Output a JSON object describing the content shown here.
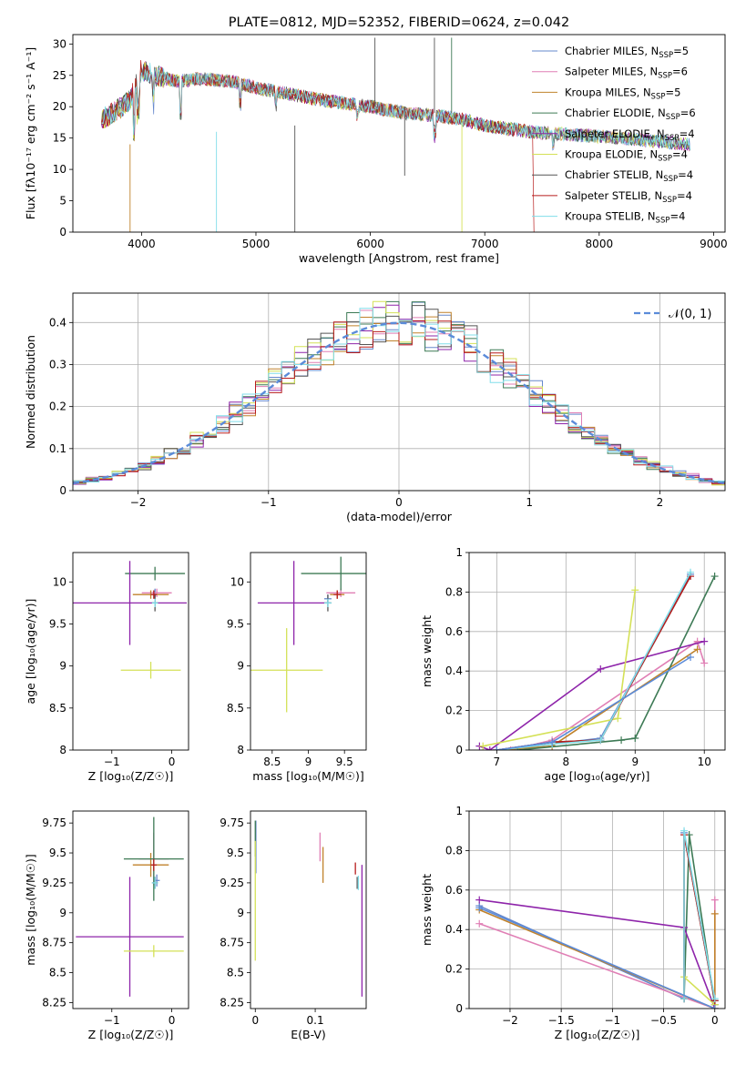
{
  "chart_data": [
    {
      "id": "spectrum",
      "type": "line",
      "title": "PLATE=0812, MJD=52352, FIBERID=0624, z=0.042",
      "xlabel": "wavelength [Angstrom, rest frame]",
      "ylabel": "Flux [fλ10⁻¹⁷ erg cm⁻² s⁻¹ A⁻¹]",
      "xlim": [
        3400,
        9100
      ],
      "ylim": [
        0,
        31.5
      ],
      "xticks": [
        4000,
        5000,
        6000,
        7000,
        8000,
        9000
      ],
      "yticks": [
        0,
        5,
        10,
        15,
        20,
        25,
        30
      ],
      "legend_position": "top-right",
      "approx_continuum": {
        "x": [
          3650,
          3750,
          3900,
          4000,
          4100,
          4300,
          4500,
          4800,
          5000,
          5300,
          5600,
          6000,
          6300,
          6600,
          6800,
          7000,
          7400,
          7800,
          8200,
          8500,
          8800
        ],
        "y": [
          18,
          19,
          21,
          26,
          25,
          24,
          24.5,
          24,
          23,
          22,
          21,
          20,
          19,
          18.5,
          18,
          17,
          16,
          15.5,
          15,
          14.5,
          14
        ]
      },
      "series": [
        {
          "name": "Chabrier MILES, N",
          "sub": "SSP",
          "suffix": "=5",
          "color": "#6688cc"
        },
        {
          "name": "Salpeter MILES, N",
          "sub": "SSP",
          "suffix": "=6",
          "color": "#e07fb5"
        },
        {
          "name": "Kroupa MILES, N",
          "sub": "SSP",
          "suffix": "=5",
          "color": "#c0822b"
        },
        {
          "name": "Chabrier ELODIE, N",
          "sub": "SSP",
          "suffix": "=6",
          "color": "#3d7a55"
        },
        {
          "name": "Salpeter ELODIE, N",
          "sub": "SSP",
          "suffix": "=4",
          "color": "#8e24aa"
        },
        {
          "name": "Kroupa ELODIE, N",
          "sub": "SSP",
          "suffix": "=4",
          "color": "#d4e157"
        },
        {
          "name": "Chabrier STELIB, N",
          "sub": "SSP",
          "suffix": "=4",
          "color": "#555555"
        },
        {
          "name": "Salpeter STELIB, N",
          "sub": "SSP",
          "suffix": "=4",
          "color": "#b71c1c"
        },
        {
          "name": "Kroupa STELIB, N",
          "sub": "SSP",
          "suffix": "=4",
          "color": "#80deea"
        }
      ]
    },
    {
      "id": "residuals",
      "type": "line",
      "xlabel": "(data-model)/error",
      "ylabel": "Normed distribution",
      "xlim": [
        -2.5,
        2.5
      ],
      "ylim": [
        0,
        0.47
      ],
      "xticks": [
        -2,
        -1,
        0,
        1,
        2
      ],
      "yticks": [
        0.0,
        0.1,
        0.2,
        0.3,
        0.4
      ],
      "grid": true,
      "legend_position": "top-right",
      "legend_label": "𝒩(0, 1)",
      "gaussian": {
        "mean": 0,
        "sigma": 1,
        "color": "#5b8bd9"
      },
      "bin_width": 0.1
    },
    {
      "id": "age_vs_Z",
      "type": "scatter",
      "xlabel": "Z [log₁₀(Z/Z☉)]",
      "ylabel": "age  [log₁₀(age/yr)]",
      "xlim": [
        -1.65,
        0.28
      ],
      "ylim": [
        8.0,
        10.35
      ],
      "xticks": [
        -1,
        0
      ],
      "yticks": [
        8.0,
        8.5,
        9.0,
        9.5,
        10.0
      ],
      "points": [
        {
          "x": -0.28,
          "xerr": 0.05,
          "y": 9.87,
          "yerr": 0.05,
          "color": "#6688cc"
        },
        {
          "x": -0.25,
          "xerr": 0.25,
          "y": 9.87,
          "yerr": 0.05,
          "color": "#e07fb5"
        },
        {
          "x": -0.35,
          "xerr": 0.3,
          "y": 9.85,
          "yerr": 0.05,
          "color": "#c0822b"
        },
        {
          "x": -0.28,
          "xerr": 0.5,
          "y": 10.1,
          "yerr": 0.08,
          "color": "#3d7a55"
        },
        {
          "x": -0.7,
          "xerr": 0.95,
          "y": 9.75,
          "yerr": 0.5,
          "color": "#8e24aa"
        },
        {
          "x": -0.35,
          "xerr": 0.5,
          "y": 8.95,
          "yerr": 0.1,
          "color": "#d4e157"
        },
        {
          "x": -0.28,
          "xerr": 0.05,
          "y": 9.75,
          "yerr": 0.1,
          "color": "#555555"
        },
        {
          "x": -0.3,
          "xerr": 0.05,
          "y": 9.85,
          "yerr": 0.05,
          "color": "#b71c1c"
        },
        {
          "x": -0.28,
          "xerr": 0.05,
          "y": 9.75,
          "yerr": 0.05,
          "color": "#80deea"
        }
      ]
    },
    {
      "id": "age_vs_mass",
      "type": "scatter",
      "xlabel": "mass [log₁₀(M/M☉)]",
      "ylabel": "",
      "xlim": [
        8.2,
        9.8
      ],
      "ylim": [
        8.0,
        10.35
      ],
      "xticks": [
        8.5,
        9.0,
        9.5
      ],
      "yticks": [
        8.0,
        8.5,
        9.0,
        9.5,
        10.0
      ],
      "points": [
        {
          "x": 9.27,
          "xerr": 0.05,
          "y": 9.8,
          "yerr": 0.05,
          "color": "#6688cc"
        },
        {
          "x": 9.45,
          "xerr": 0.2,
          "y": 9.87,
          "yerr": 0.05,
          "color": "#e07fb5"
        },
        {
          "x": 9.4,
          "xerr": 0.1,
          "y": 9.85,
          "yerr": 0.05,
          "color": "#c0822b"
        },
        {
          "x": 9.45,
          "xerr": 0.55,
          "y": 10.1,
          "yerr": 0.2,
          "color": "#3d7a55"
        },
        {
          "x": 8.8,
          "xerr": 0.5,
          "y": 9.75,
          "yerr": 0.5,
          "color": "#8e24aa"
        },
        {
          "x": 8.7,
          "xerr": 0.5,
          "y": 8.95,
          "yerr": 0.5,
          "color": "#d4e157"
        },
        {
          "x": 9.27,
          "xerr": 0.05,
          "y": 9.75,
          "yerr": 0.1,
          "color": "#555555"
        },
        {
          "x": 9.4,
          "xerr": 0.05,
          "y": 9.85,
          "yerr": 0.05,
          "color": "#b71c1c"
        },
        {
          "x": 9.27,
          "xerr": 0.05,
          "y": 9.75,
          "yerr": 0.05,
          "color": "#80deea"
        }
      ]
    },
    {
      "id": "mass_weight_vs_age",
      "type": "line",
      "xlabel": "age  [log₁₀(age/yr)]",
      "ylabel": "mass weight",
      "xlim": [
        6.6,
        10.3
      ],
      "ylim": [
        0,
        1.0
      ],
      "xticks": [
        7,
        8,
        9,
        10
      ],
      "yticks": [
        0.0,
        0.2,
        0.4,
        0.6,
        0.8,
        1.0
      ],
      "grid": true,
      "series": [
        {
          "color": "#6688cc",
          "x": [
            7.0,
            7.8,
            8.5,
            9.8
          ],
          "y": [
            0.0,
            0.03,
            0.06,
            0.89
          ]
        },
        {
          "color": "#e07fb5",
          "x": [
            7.2,
            7.8,
            9.9,
            10.0
          ],
          "y": [
            0.0,
            0.05,
            0.55,
            0.44
          ]
        },
        {
          "color": "#c0822b",
          "x": [
            7.0,
            7.8,
            9.9
          ],
          "y": [
            0.0,
            0.02,
            0.51
          ]
        },
        {
          "color": "#3d7a55",
          "x": [
            7.3,
            8.8,
            9.0,
            10.15
          ],
          "y": [
            0.0,
            0.05,
            0.06,
            0.88
          ]
        },
        {
          "color": "#8e24aa",
          "x": [
            6.75,
            6.9,
            8.5,
            10.0
          ],
          "y": [
            0.02,
            0.0,
            0.41,
            0.55
          ]
        },
        {
          "color": "#d4e157",
          "x": [
            6.8,
            8.75,
            9.0
          ],
          "y": [
            0.02,
            0.16,
            0.81
          ]
        },
        {
          "color": "#555555",
          "x": [
            7.0,
            7.8,
            8.5,
            9.8
          ],
          "y": [
            0.0,
            0.04,
            0.05,
            0.88
          ]
        },
        {
          "color": "#b71c1c",
          "x": [
            7.0,
            7.8,
            8.5,
            9.8
          ],
          "y": [
            0.0,
            0.04,
            0.05,
            0.88
          ]
        },
        {
          "color": "#80deea",
          "x": [
            7.0,
            7.8,
            8.5,
            9.8
          ],
          "y": [
            0.0,
            0.03,
            0.05,
            0.9
          ]
        },
        {
          "color": "#5b8bd9",
          "x": [
            7.0,
            7.8,
            9.8
          ],
          "y": [
            0.0,
            0.04,
            0.47
          ]
        }
      ]
    },
    {
      "id": "mass_vs_Z",
      "type": "scatter",
      "xlabel": "Z [log₁₀(Z/Z☉)]",
      "ylabel": "mass [log₁₀(M/M☉)]",
      "xlim": [
        -1.65,
        0.28
      ],
      "ylim": [
        8.2,
        9.85
      ],
      "xticks": [
        -1,
        0
      ],
      "yticks": [
        8.25,
        8.5,
        8.75,
        9.0,
        9.25,
        9.5,
        9.75
      ],
      "points": [
        {
          "x": -0.25,
          "xerr": 0.05,
          "y": 9.27,
          "yerr": 0.05,
          "color": "#6688cc"
        },
        {
          "x": -0.3,
          "xerr": 0.25,
          "y": 9.45,
          "yerr": 0.22,
          "color": "#e07fb5"
        },
        {
          "x": -0.35,
          "xerr": 0.3,
          "y": 9.4,
          "yerr": 0.1,
          "color": "#c0822b"
        },
        {
          "x": -0.3,
          "xerr": 0.5,
          "y": 9.45,
          "yerr": 0.35,
          "color": "#3d7a55"
        },
        {
          "x": -0.7,
          "xerr": 0.9,
          "y": 8.8,
          "yerr": 0.5,
          "color": "#8e24aa"
        },
        {
          "x": -0.3,
          "xerr": 0.5,
          "y": 8.68,
          "yerr": 0.05,
          "color": "#d4e157"
        },
        {
          "x": -0.28,
          "xerr": 0.05,
          "y": 9.25,
          "yerr": 0.05,
          "color": "#555555"
        },
        {
          "x": -0.3,
          "xerr": 0.05,
          "y": 9.4,
          "yerr": 0.05,
          "color": "#b71c1c"
        },
        {
          "x": -0.28,
          "xerr": 0.05,
          "y": 9.25,
          "yerr": 0.05,
          "color": "#80deea"
        }
      ]
    },
    {
      "id": "mass_vs_ebv",
      "type": "scatter",
      "xlabel": "E(B-V)",
      "ylabel": "",
      "xlim": [
        -0.008,
        0.185
      ],
      "ylim": [
        8.2,
        9.85
      ],
      "xticks": [
        0.0,
        0.1
      ],
      "yticks": [
        8.25,
        8.5,
        8.75,
        9.0,
        9.25,
        9.5,
        9.75
      ],
      "points": [
        {
          "x": 0.001,
          "xerr": 0,
          "y": 9.55,
          "yerr": 0.22,
          "color": "#6688cc"
        },
        {
          "x": 0.108,
          "xerr": 0,
          "y": 9.55,
          "yerr": 0.12,
          "color": "#e07fb5"
        },
        {
          "x": 0.113,
          "xerr": 0,
          "y": 9.4,
          "yerr": 0.15,
          "color": "#c0822b"
        },
        {
          "x": 0.0,
          "xerr": 0,
          "y": 9.62,
          "yerr": 0.15,
          "color": "#3d7a55"
        },
        {
          "x": 0.178,
          "xerr": 0,
          "y": 8.85,
          "yerr": 0.55,
          "color": "#8e24aa"
        },
        {
          "x": 0.0,
          "xerr": 0,
          "y": 9.1,
          "yerr": 0.5,
          "color": "#d4e157"
        },
        {
          "x": 0.17,
          "xerr": 0,
          "y": 9.25,
          "yerr": 0.05,
          "color": "#555555"
        },
        {
          "x": 0.167,
          "xerr": 0,
          "y": 9.37,
          "yerr": 0.05,
          "color": "#b71c1c"
        },
        {
          "x": 0.172,
          "xerr": 0,
          "y": 9.25,
          "yerr": 0.06,
          "color": "#80deea"
        }
      ]
    },
    {
      "id": "mass_weight_vs_Z",
      "type": "line",
      "xlabel": "Z [log₁₀(Z/Z☉)]",
      "ylabel": "mass weight",
      "xlim": [
        -2.4,
        0.1
      ],
      "ylim": [
        0,
        1.0
      ],
      "xticks": [
        -2.0,
        -1.5,
        -1.0,
        -0.5,
        0.0
      ],
      "yticks": [
        0.0,
        0.2,
        0.4,
        0.6,
        0.8,
        1.0
      ],
      "grid": true,
      "series": [
        {
          "color": "#6688cc",
          "x": [
            -2.3,
            -0.3,
            -0.3,
            0.0
          ],
          "y": [
            0.52,
            0.05,
            0.89,
            0.04
          ]
        },
        {
          "color": "#e07fb5",
          "x": [
            -2.3,
            0.0,
            0.0
          ],
          "y": [
            0.43,
            0.0,
            0.55
          ]
        },
        {
          "color": "#c0822b",
          "x": [
            -2.3,
            0.0,
            0.0
          ],
          "y": [
            0.5,
            0.0,
            0.48
          ]
        },
        {
          "color": "#3d7a55",
          "x": [
            -0.3,
            -0.25,
            0.0
          ],
          "y": [
            0.05,
            0.88,
            0.02
          ]
        },
        {
          "color": "#8e24aa",
          "x": [
            -2.3,
            -0.3,
            0.0
          ],
          "y": [
            0.55,
            0.41,
            0.0
          ]
        },
        {
          "color": "#d4e157",
          "x": [
            -0.3,
            0.0
          ],
          "y": [
            0.16,
            0.02
          ]
        },
        {
          "color": "#555555",
          "x": [
            -0.3,
            -0.3,
            0.0
          ],
          "y": [
            0.05,
            0.88,
            0.04
          ]
        },
        {
          "color": "#b71c1c",
          "x": [
            -0.3,
            -0.3,
            0.0
          ],
          "y": [
            0.05,
            0.88,
            0.04
          ]
        },
        {
          "color": "#80deea",
          "x": [
            -0.3,
            -0.3,
            0.0
          ],
          "y": [
            0.05,
            0.9,
            0.05
          ]
        },
        {
          "color": "#5b8bd9",
          "x": [
            -2.3,
            0.0
          ],
          "y": [
            0.51,
            0.0
          ]
        }
      ]
    }
  ]
}
